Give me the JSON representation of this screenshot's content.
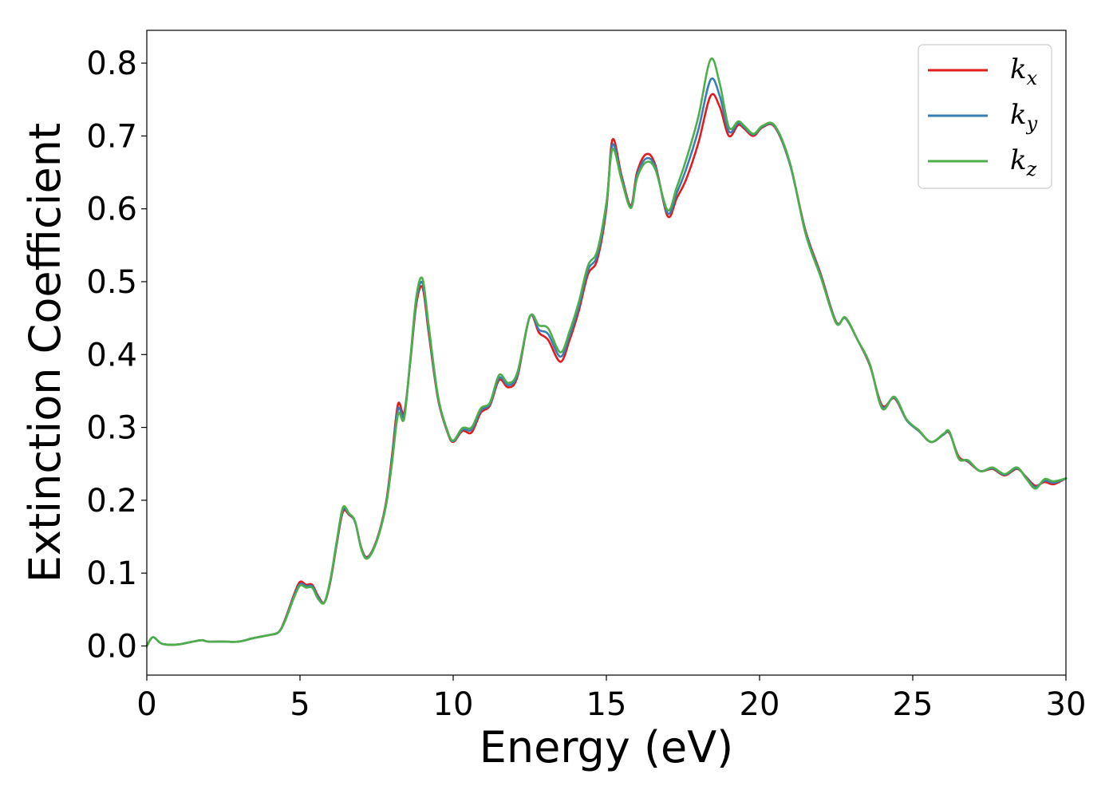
{
  "chart_data": {
    "type": "line",
    "title": "",
    "xlabel": "Energy (eV)",
    "ylabel": "Extinction Coefficient",
    "xlim": [
      0,
      30
    ],
    "ylim": [
      -0.04,
      0.845
    ],
    "xticks": [
      0,
      5,
      10,
      15,
      20,
      25,
      30
    ],
    "xtick_labels": [
      "0",
      "5",
      "10",
      "15",
      "20",
      "25",
      "30"
    ],
    "yticks": [
      0.0,
      0.1,
      0.2,
      0.3,
      0.4,
      0.5,
      0.6,
      0.7,
      0.8
    ],
    "ytick_labels": [
      "0.0",
      "0.1",
      "0.2",
      "0.3",
      "0.4",
      "0.5",
      "0.6",
      "0.7",
      "0.8"
    ],
    "grid": false,
    "legend_position": "top-right",
    "x": [
      0.0,
      0.2,
      0.5,
      1.0,
      1.5,
      1.8,
      2.0,
      2.5,
      3.0,
      3.5,
      4.0,
      4.3,
      4.5,
      4.8,
      5.0,
      5.2,
      5.4,
      5.6,
      5.8,
      6.0,
      6.2,
      6.4,
      6.6,
      6.8,
      7.0,
      7.2,
      7.5,
      7.8,
      8.0,
      8.2,
      8.4,
      8.6,
      8.8,
      9.0,
      9.2,
      9.5,
      9.8,
      10.0,
      10.3,
      10.6,
      10.9,
      11.2,
      11.5,
      11.8,
      12.1,
      12.5,
      12.8,
      13.1,
      13.5,
      13.8,
      14.1,
      14.4,
      14.7,
      15.0,
      15.2,
      15.5,
      15.8,
      16.0,
      16.3,
      16.6,
      17.0,
      17.3,
      17.6,
      18.0,
      18.4,
      18.7,
      19.0,
      19.3,
      19.5,
      19.8,
      20.1,
      20.5,
      21.0,
      21.5,
      22.0,
      22.5,
      22.8,
      23.2,
      23.6,
      24.0,
      24.4,
      24.8,
      25.2,
      25.6,
      26.0,
      26.2,
      26.5,
      26.8,
      27.2,
      27.6,
      28.0,
      28.4,
      28.7,
      29.0,
      29.3,
      29.6,
      30.0
    ],
    "series": [
      {
        "name": "k_x",
        "label_base": "k",
        "label_sub": "x",
        "color": "#e41a1c",
        "values": [
          0.0,
          0.012,
          0.003,
          0.002,
          0.006,
          0.008,
          0.006,
          0.006,
          0.006,
          0.011,
          0.015,
          0.019,
          0.035,
          0.07,
          0.088,
          0.084,
          0.084,
          0.068,
          0.06,
          0.09,
          0.14,
          0.184,
          0.18,
          0.17,
          0.135,
          0.122,
          0.145,
          0.195,
          0.26,
          0.332,
          0.32,
          0.39,
          0.47,
          0.492,
          0.43,
          0.34,
          0.295,
          0.28,
          0.295,
          0.293,
          0.32,
          0.33,
          0.365,
          0.355,
          0.37,
          0.452,
          0.43,
          0.42,
          0.39,
          0.42,
          0.46,
          0.51,
          0.53,
          0.6,
          0.695,
          0.645,
          0.605,
          0.65,
          0.675,
          0.66,
          0.59,
          0.615,
          0.64,
          0.69,
          0.755,
          0.74,
          0.7,
          0.715,
          0.71,
          0.7,
          0.712,
          0.712,
          0.66,
          0.57,
          0.51,
          0.445,
          0.45,
          0.42,
          0.385,
          0.33,
          0.34,
          0.31,
          0.295,
          0.28,
          0.29,
          0.292,
          0.26,
          0.253,
          0.24,
          0.243,
          0.234,
          0.243,
          0.232,
          0.22,
          0.225,
          0.222,
          0.23
        ]
      },
      {
        "name": "k_y",
        "label_base": "k",
        "label_sub": "y",
        "color": "#377eb8",
        "values": [
          0.0,
          0.012,
          0.003,
          0.002,
          0.006,
          0.008,
          0.006,
          0.006,
          0.006,
          0.011,
          0.015,
          0.019,
          0.034,
          0.068,
          0.085,
          0.082,
          0.082,
          0.066,
          0.06,
          0.092,
          0.142,
          0.187,
          0.181,
          0.17,
          0.134,
          0.121,
          0.144,
          0.193,
          0.255,
          0.325,
          0.316,
          0.392,
          0.475,
          0.498,
          0.435,
          0.342,
          0.296,
          0.281,
          0.297,
          0.297,
          0.323,
          0.332,
          0.368,
          0.358,
          0.373,
          0.452,
          0.434,
          0.428,
          0.397,
          0.426,
          0.466,
          0.516,
          0.536,
          0.604,
          0.688,
          0.642,
          0.603,
          0.646,
          0.669,
          0.657,
          0.594,
          0.622,
          0.654,
          0.708,
          0.777,
          0.755,
          0.706,
          0.718,
          0.712,
          0.702,
          0.713,
          0.713,
          0.66,
          0.568,
          0.508,
          0.444,
          0.45,
          0.42,
          0.386,
          0.328,
          0.341,
          0.31,
          0.295,
          0.28,
          0.29,
          0.293,
          0.258,
          0.254,
          0.24,
          0.244,
          0.235,
          0.244,
          0.231,
          0.218,
          0.227,
          0.224,
          0.23
        ]
      },
      {
        "name": "k_z",
        "label_base": "k",
        "label_sub": "z",
        "color": "#4daf4a",
        "values": [
          0.0,
          0.012,
          0.003,
          0.002,
          0.006,
          0.008,
          0.006,
          0.006,
          0.006,
          0.011,
          0.015,
          0.019,
          0.033,
          0.066,
          0.083,
          0.08,
          0.08,
          0.064,
          0.06,
          0.093,
          0.144,
          0.19,
          0.182,
          0.171,
          0.133,
          0.12,
          0.143,
          0.191,
          0.25,
          0.318,
          0.312,
          0.394,
          0.48,
          0.504,
          0.44,
          0.344,
          0.297,
          0.282,
          0.299,
          0.3,
          0.326,
          0.334,
          0.372,
          0.361,
          0.376,
          0.452,
          0.44,
          0.436,
          0.403,
          0.432,
          0.472,
          0.522,
          0.542,
          0.608,
          0.682,
          0.639,
          0.601,
          0.642,
          0.664,
          0.654,
          0.598,
          0.63,
          0.667,
          0.726,
          0.805,
          0.772,
          0.712,
          0.72,
          0.714,
          0.703,
          0.714,
          0.714,
          0.662,
          0.566,
          0.506,
          0.443,
          0.451,
          0.42,
          0.387,
          0.326,
          0.342,
          0.311,
          0.296,
          0.28,
          0.291,
          0.294,
          0.257,
          0.255,
          0.24,
          0.245,
          0.236,
          0.245,
          0.23,
          0.216,
          0.229,
          0.226,
          0.23
        ]
      }
    ]
  }
}
